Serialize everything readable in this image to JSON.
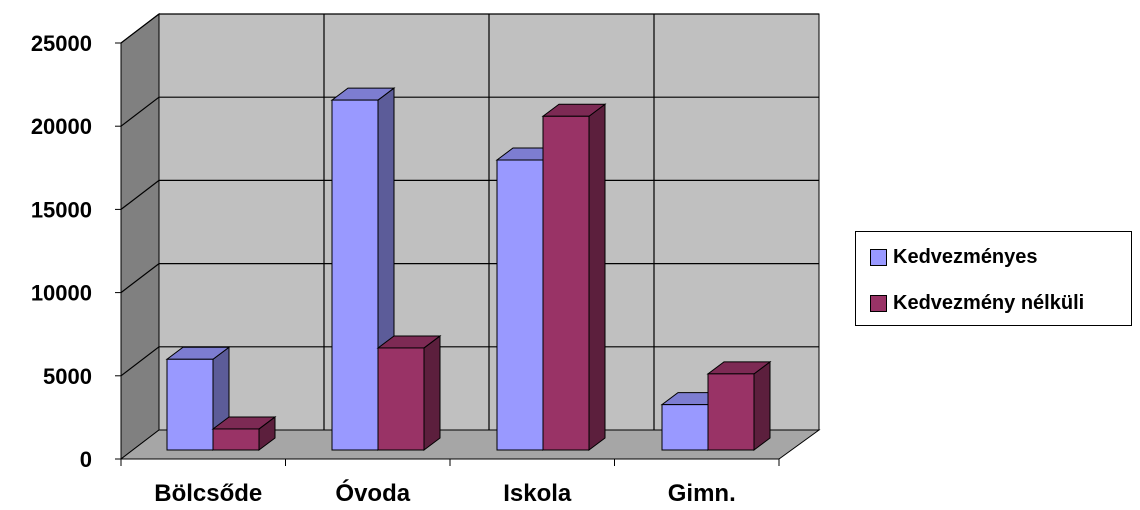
{
  "chart_data": {
    "type": "bar",
    "categories": [
      "Bölcsőde",
      "Óvoda",
      "Iskola",
      "Gimn."
    ],
    "series": [
      {
        "name": "Kedvezményes",
        "values": [
          5600,
          21600,
          17900,
          2800
        ],
        "color": "#9999ff"
      },
      {
        "name": "Kedvezmény nélküli",
        "values": [
          1300,
          6300,
          20600,
          4700
        ],
        "color": "#993366"
      }
    ],
    "ylim": [
      0,
      25000
    ],
    "yticks": [
      "0",
      "5000",
      "10000",
      "15000",
      "20000",
      "25000"
    ],
    "grid": true,
    "legend_position": "right",
    "style": "3d-clustered-column"
  }
}
